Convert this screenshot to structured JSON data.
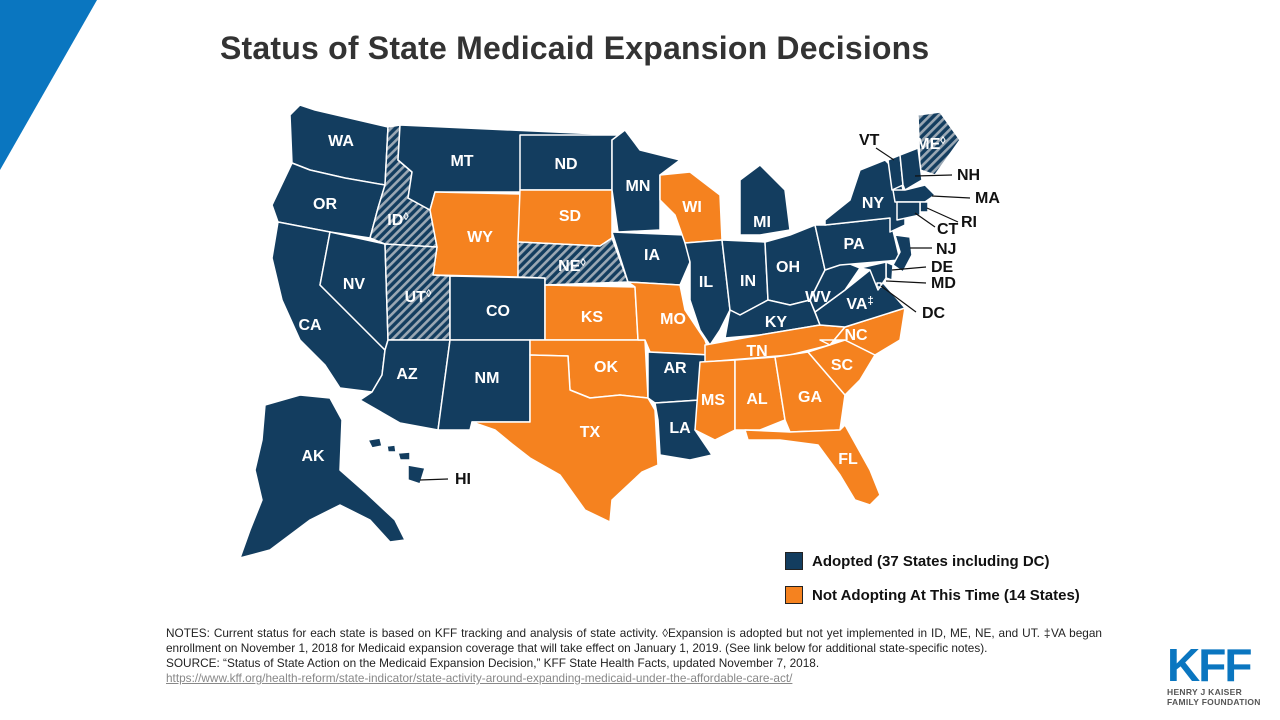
{
  "title": "Status of State Medicaid Expansion Decisions",
  "colors": {
    "adopted": "#133d5f",
    "not_adopting": "#f5821f",
    "accent": "#0a76c0",
    "pattern_stripe": "#9aa7b3"
  },
  "legend": {
    "adopted_label": "Adopted (37 States including DC)",
    "not_adopting_label": "Not Adopting At This Time (14 States)"
  },
  "states": {
    "WA": {
      "label": "WA",
      "status": "adopted"
    },
    "OR": {
      "label": "OR",
      "status": "adopted"
    },
    "CA": {
      "label": "CA",
      "status": "adopted"
    },
    "NV": {
      "label": "NV",
      "status": "adopted"
    },
    "ID": {
      "label": "ID",
      "status": "adopted_not_implemented",
      "mark": "◊"
    },
    "MT": {
      "label": "MT",
      "status": "adopted"
    },
    "WY": {
      "label": "WY",
      "status": "not_adopting"
    },
    "UT": {
      "label": "UT",
      "status": "adopted_not_implemented",
      "mark": "◊"
    },
    "CO": {
      "label": "CO",
      "status": "adopted"
    },
    "AZ": {
      "label": "AZ",
      "status": "adopted"
    },
    "NM": {
      "label": "NM",
      "status": "adopted"
    },
    "ND": {
      "label": "ND",
      "status": "adopted"
    },
    "SD": {
      "label": "SD",
      "status": "not_adopting"
    },
    "NE": {
      "label": "NE",
      "status": "adopted_not_implemented",
      "mark": "◊"
    },
    "KS": {
      "label": "KS",
      "status": "not_adopting"
    },
    "OK": {
      "label": "OK",
      "status": "not_adopting"
    },
    "TX": {
      "label": "TX",
      "status": "not_adopting"
    },
    "MN": {
      "label": "MN",
      "status": "adopted"
    },
    "IA": {
      "label": "IA",
      "status": "adopted"
    },
    "MO": {
      "label": "MO",
      "status": "not_adopting"
    },
    "AR": {
      "label": "AR",
      "status": "adopted"
    },
    "LA": {
      "label": "LA",
      "status": "adopted"
    },
    "WI": {
      "label": "WI",
      "status": "not_adopting"
    },
    "IL": {
      "label": "IL",
      "status": "adopted"
    },
    "MI": {
      "label": "MI",
      "status": "adopted"
    },
    "IN": {
      "label": "IN",
      "status": "adopted"
    },
    "OH": {
      "label": "OH",
      "status": "adopted"
    },
    "KY": {
      "label": "KY",
      "status": "adopted"
    },
    "TN": {
      "label": "TN",
      "status": "not_adopting"
    },
    "MS": {
      "label": "MS",
      "status": "not_adopting"
    },
    "AL": {
      "label": "AL",
      "status": "not_adopting"
    },
    "GA": {
      "label": "GA",
      "status": "not_adopting"
    },
    "FL": {
      "label": "FL",
      "status": "not_adopting"
    },
    "SC": {
      "label": "SC",
      "status": "not_adopting"
    },
    "NC": {
      "label": "NC",
      "status": "not_adopting"
    },
    "VA": {
      "label": "VA",
      "status": "adopted",
      "mark": "‡"
    },
    "WV": {
      "label": "WV",
      "status": "adopted"
    },
    "PA": {
      "label": "PA",
      "status": "adopted"
    },
    "NY": {
      "label": "NY",
      "status": "adopted"
    },
    "ME": {
      "label": "ME",
      "status": "adopted_not_implemented",
      "mark": "◊"
    },
    "AK": {
      "label": "AK",
      "status": "adopted"
    },
    "HI": {
      "label": "HI",
      "status": "adopted"
    },
    "VT": {
      "label": "VT",
      "status": "adopted"
    },
    "NH": {
      "label": "NH",
      "status": "adopted"
    },
    "MA": {
      "label": "MA",
      "status": "adopted"
    },
    "RI": {
      "label": "RI",
      "status": "adopted"
    },
    "CT": {
      "label": "CT",
      "status": "adopted"
    },
    "NJ": {
      "label": "NJ",
      "status": "adopted"
    },
    "DE": {
      "label": "DE",
      "status": "adopted"
    },
    "MD": {
      "label": "MD",
      "status": "adopted"
    },
    "DC": {
      "label": "DC",
      "status": "adopted"
    }
  },
  "notes": {
    "line1": "NOTES: Current status for each state is based on KFF tracking and analysis of state activity. ◊Expansion is adopted but not yet implemented in ID, ME, NE, and UT. ‡VA began enrollment on November 1, 2018 for Medicaid expansion coverage that will take effect on January 1, 2019. (See link below for additional state-specific notes).",
    "source": "SOURCE: “Status of State Action on the Medicaid Expansion Decision,” KFF State Health Facts, updated November 7, 2018.",
    "link": "https://www.kff.org/health-reform/state-indicator/state-activity-around-expanding-medicaid-under-the-affordable-care-act/"
  },
  "logo": {
    "mark": "KFF",
    "line1": "HENRY J KAISER",
    "line2": "FAMILY FOUNDATION"
  }
}
